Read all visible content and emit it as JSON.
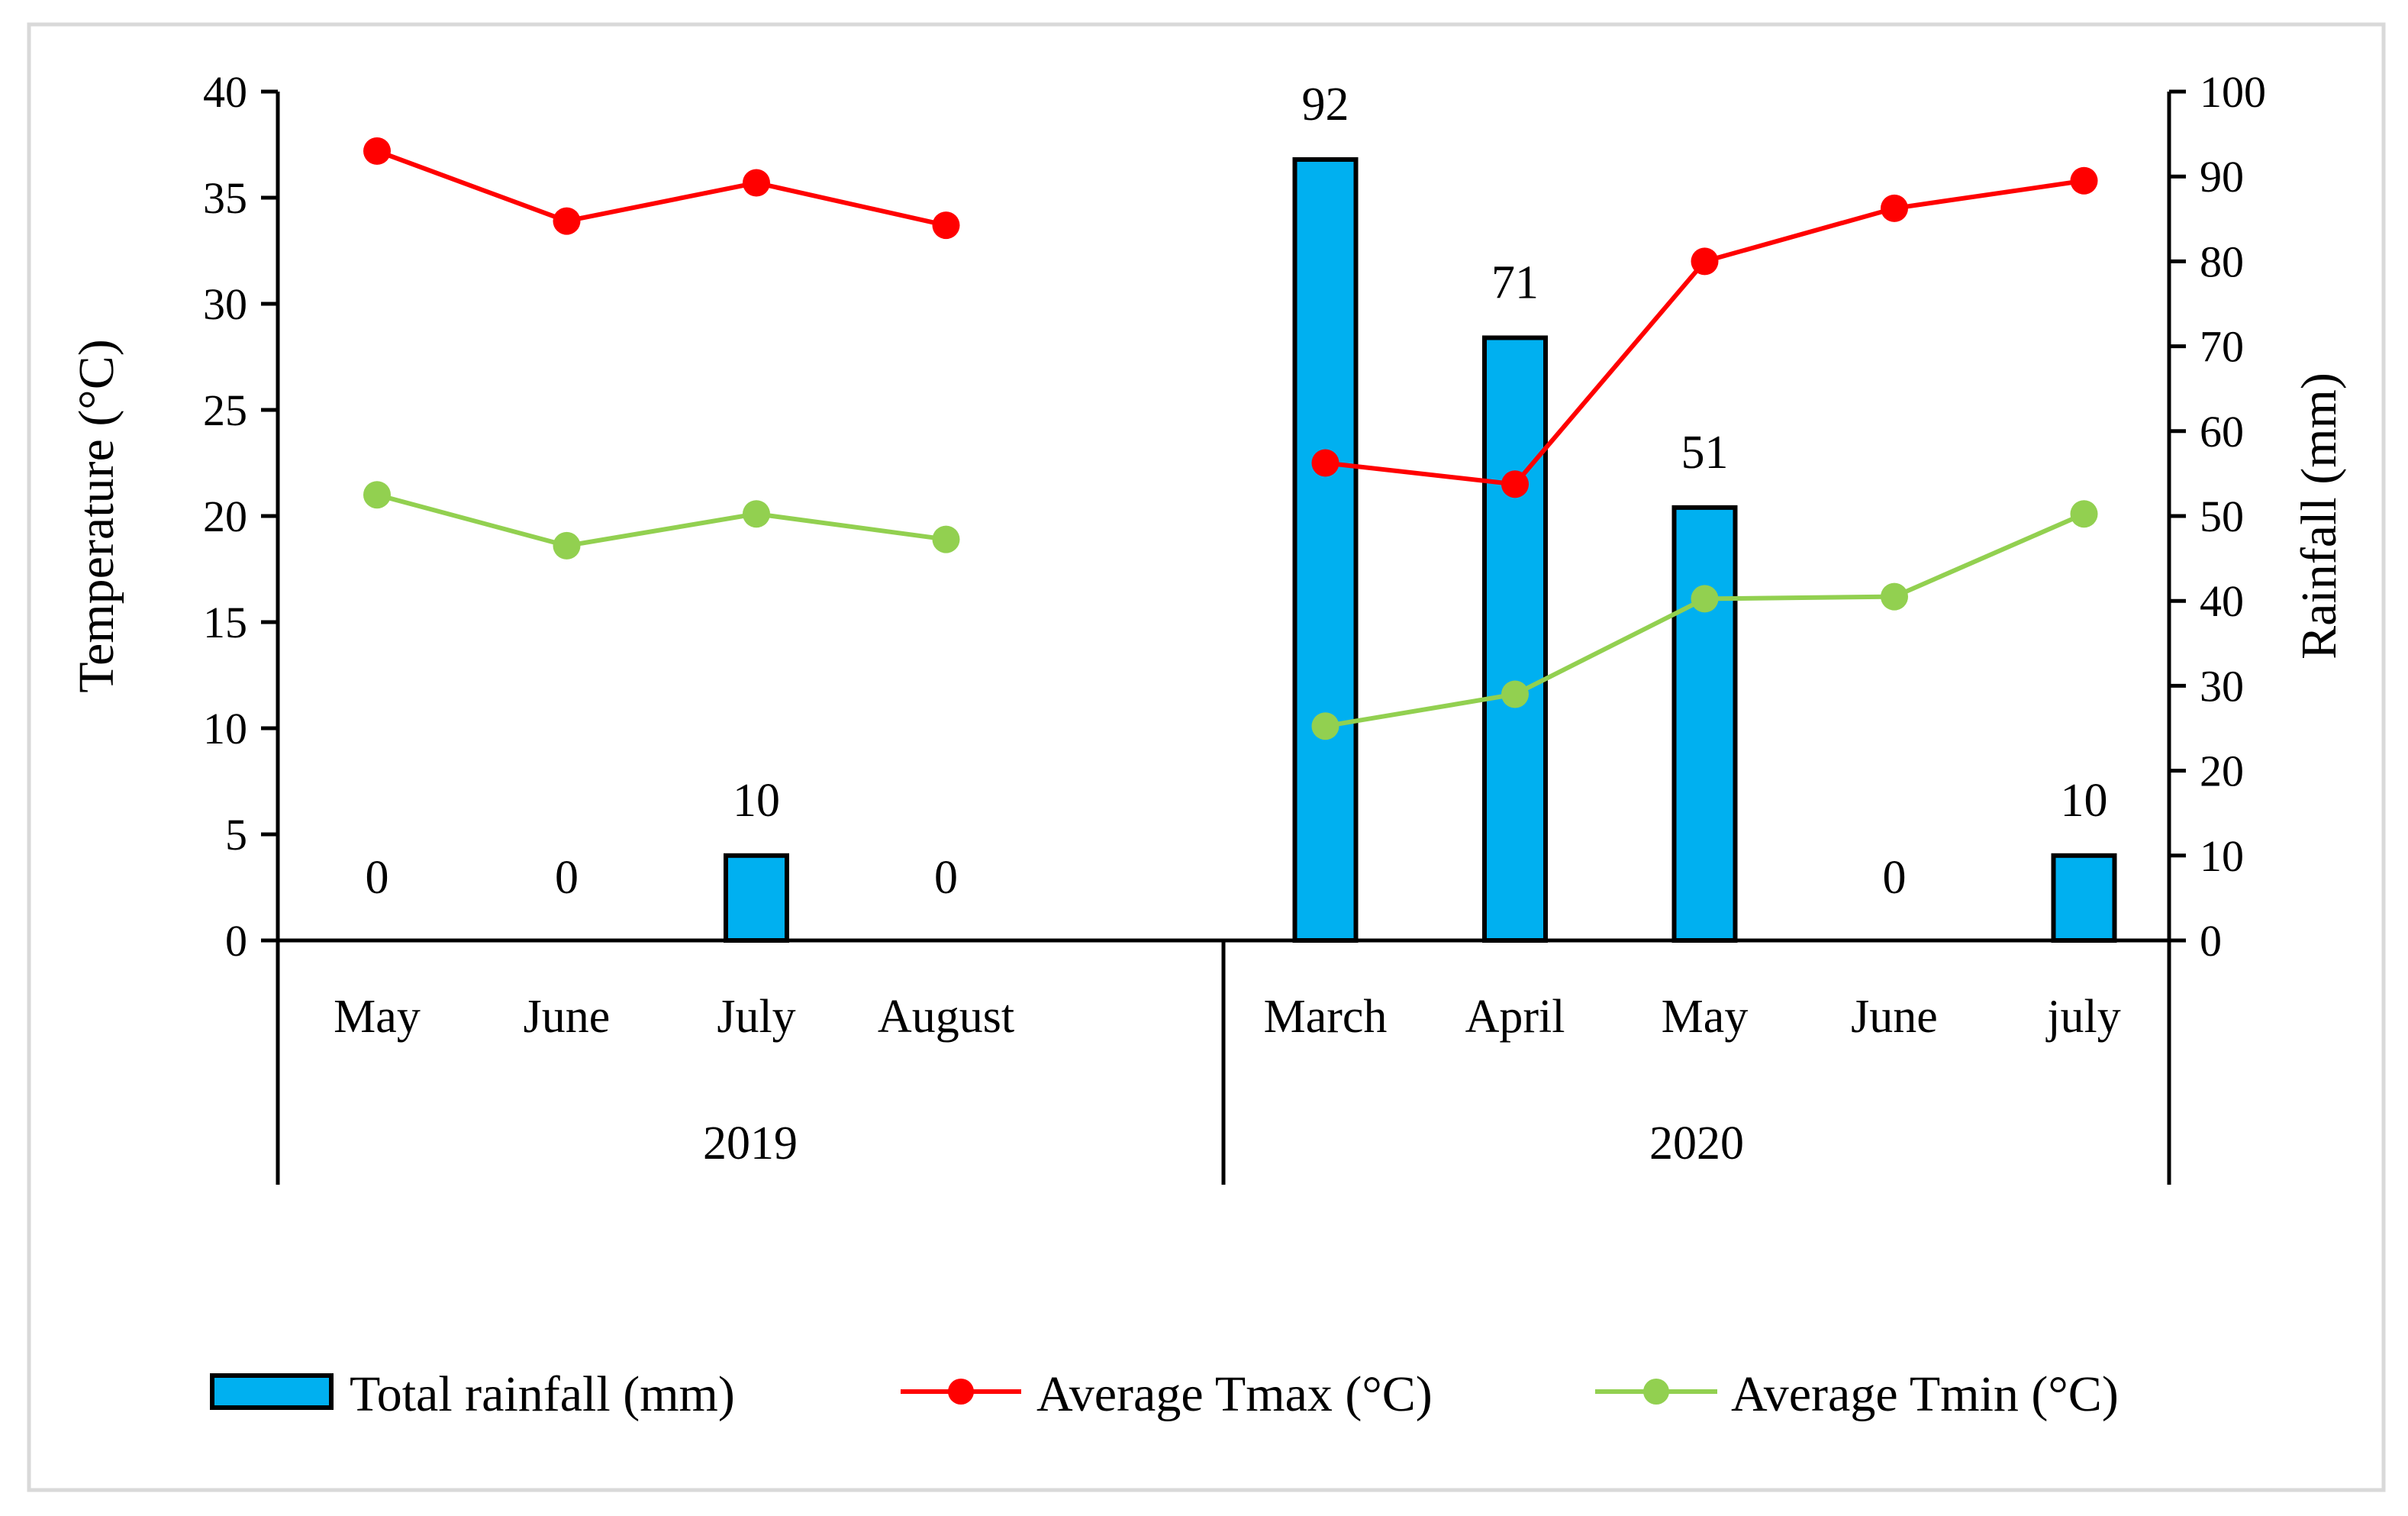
{
  "chart_data": {
    "type": "bar+line",
    "title": "",
    "groups": [
      {
        "label": "2019",
        "months": [
          "May",
          "June",
          "July",
          "August"
        ]
      },
      {
        "label": "2020",
        "months": [
          "March",
          "April",
          "May",
          "June",
          "july"
        ]
      }
    ],
    "categories": [
      "May",
      "June",
      "July",
      "August",
      "",
      "March",
      "April",
      "May",
      "June",
      "july"
    ],
    "series": [
      {
        "name": "Total rainfall (mm)",
        "type": "bar",
        "axis": "right",
        "color": "#00B0F0",
        "values": [
          0,
          0,
          10,
          0,
          null,
          92,
          71,
          51,
          0,
          10
        ],
        "labels": [
          "0",
          "0",
          "10",
          "0",
          null,
          "92",
          "71",
          "51",
          "0",
          "10"
        ]
      },
      {
        "name": "Average Tmax (°C)",
        "type": "line",
        "axis": "left",
        "color": "#FF0000",
        "values": [
          37.2,
          33.9,
          35.7,
          33.7,
          null,
          22.5,
          21.5,
          32.0,
          34.5,
          35.8
        ]
      },
      {
        "name": "Average Tmin (°C)",
        "type": "line",
        "axis": "left",
        "color": "#92D050",
        "values": [
          21.0,
          18.6,
          20.1,
          18.9,
          null,
          10.1,
          11.6,
          16.1,
          16.2,
          20.1
        ]
      }
    ],
    "ylabel": "Temperature (°C)",
    "ylabel_right": "Rainfall (mm)",
    "ylim": [
      0,
      40
    ],
    "yticks": [
      "0",
      "5",
      "10",
      "15",
      "20",
      "25",
      "30",
      "35",
      "40"
    ],
    "ylim_right": [
      0,
      100
    ],
    "yticks_right": [
      "0",
      "10",
      "20",
      "30",
      "40",
      "50",
      "60",
      "70",
      "80",
      "90",
      "100"
    ],
    "legend_position": "bottom"
  }
}
